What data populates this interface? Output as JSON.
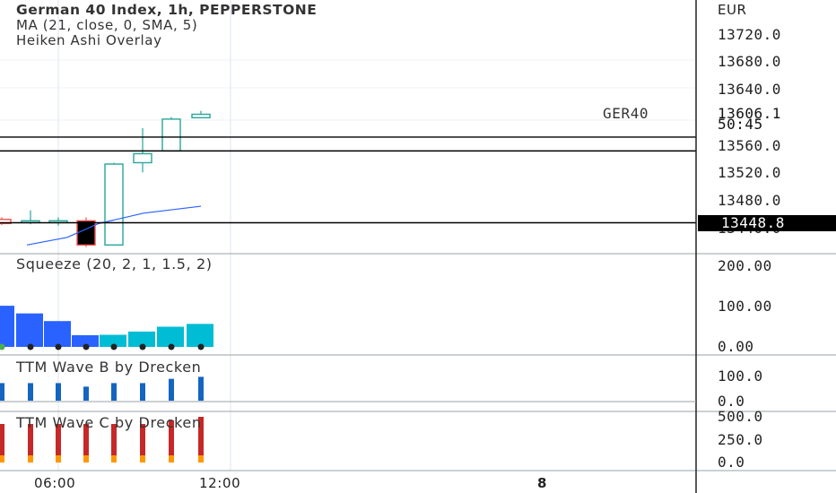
{
  "symbol": {
    "title": "German 40 Index, 1h, PEPPERSTONE",
    "indicator_ma": "MA (21, close, 0, SMA, 5)",
    "indicator_ha": "Heiken Ashi Overlay"
  },
  "price_axis": {
    "currency": "EUR",
    "ticks": [
      "13720.0",
      "13680.0",
      "13640.0",
      "13560.0",
      "13520.0",
      "13480.0",
      "13440.0"
    ],
    "current_label": "GER40",
    "current_price": "13606.1",
    "countdown": "50:45",
    "marked_price": "13448.8"
  },
  "panes": {
    "squeeze": {
      "title": "Squeeze (20, 2, 1, 1.5, 2)",
      "ticks": [
        "200.00",
        "100.00",
        "0.00"
      ]
    },
    "wave_b": {
      "title": "TTM Wave B by Drecken",
      "ticks": [
        "100.0",
        "0.0"
      ]
    },
    "wave_c": {
      "title": "TTM Wave C by Drecken",
      "ticks": [
        "500.0",
        "250.0",
        "0.0"
      ]
    }
  },
  "time_axis": {
    "labels": [
      "06:00",
      "12:00",
      "8"
    ]
  },
  "colors": {
    "up_candle": "#26a69a",
    "down_candle": "#ef5350",
    "ma_line": "#2962ff",
    "squeeze_blue": "#2962ff",
    "squeeze_cyan": "#00bcd4",
    "wave_b": "#1565c0",
    "wave_c": "#c62828",
    "wave_c_base": "#ff9800"
  },
  "chart_data": {
    "type": "candlestick",
    "price_candles": [
      {
        "open": 13452,
        "high": 13455,
        "low": 13444,
        "close": 13446
      },
      {
        "open": 13450,
        "high": 13465,
        "low": 13445,
        "close": 13450
      },
      {
        "open": 13448,
        "high": 13455,
        "low": 13443,
        "close": 13450
      },
      {
        "open": 13450,
        "high": 13455,
        "low": 13412,
        "close": 13415
      },
      {
        "open": 13415,
        "high": 13534,
        "low": 13415,
        "close": 13532
      },
      {
        "open": 13534,
        "high": 13584,
        "low": 13520,
        "close": 13547
      },
      {
        "open": 13551,
        "high": 13600,
        "low": 13550,
        "close": 13597
      },
      {
        "open": 13599,
        "high": 13609,
        "low": 13600,
        "close": 13604
      }
    ],
    "ma_line": [
      13415,
      13426,
      13446,
      13461,
      13471
    ],
    "horizontal_lines": [
      13571,
      13551,
      13448.8
    ],
    "squeeze_histogram": [
      102,
      83,
      64,
      29,
      30,
      38,
      50,
      57
    ],
    "wave_b": [
      70,
      70,
      70,
      56,
      70,
      70,
      87,
      95
    ],
    "wave_c": [
      430,
      430,
      430,
      430,
      430,
      430,
      470,
      510
    ]
  }
}
